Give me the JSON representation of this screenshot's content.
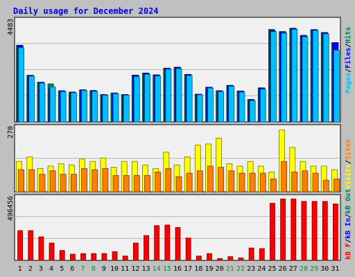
{
  "title": "Daily usage for December 2024",
  "colors": {
    "background": "#c0c0c0",
    "plot_background": "#f0f0f0",
    "border": "#000000",
    "title_text": "#0000ee",
    "weekday_text": "#000000",
    "weekend_text": "#148c3c",
    "hits": "#00805c",
    "files": "#0000ff",
    "pages": "#00c0ff",
    "visits": "#ffff00",
    "sites": "#ff8000",
    "kb_in": "#0000ff",
    "kb_out": "#00805c",
    "kb_f": "#ff0000"
  },
  "chart_data": [
    {
      "type": "bar",
      "name": "hits-files-pages",
      "ylabel_max": "4483",
      "ylim": [
        0,
        4483
      ],
      "grid": true,
      "legend": [
        {
          "label": "Pages",
          "color": "#00c0ff"
        },
        {
          "label": "Files",
          "color": "#0000ff"
        },
        {
          "label": "Hits",
          "color": "#00805c"
        }
      ],
      "categories": [
        "1",
        "2",
        "3",
        "4",
        "5",
        "6",
        "7",
        "8",
        "9",
        "10",
        "11",
        "12",
        "13",
        "14",
        "15",
        "16",
        "17",
        "18",
        "19",
        "20",
        "21",
        "22",
        "23",
        "24",
        "25",
        "26",
        "27",
        "28",
        "29",
        "30",
        "31"
      ],
      "weekend": [
        false,
        false,
        false,
        false,
        false,
        false,
        true,
        true,
        false,
        false,
        false,
        false,
        false,
        true,
        true,
        false,
        false,
        false,
        false,
        false,
        true,
        true,
        false,
        false,
        false,
        false,
        false,
        true,
        true,
        false,
        false
      ],
      "series": [
        {
          "name": "Hits",
          "values": [
            3420,
            2080,
            1770,
            1700,
            1390,
            1330,
            1430,
            1400,
            1220,
            1290,
            1220,
            2090,
            2180,
            2100,
            2400,
            2440,
            2120,
            1240,
            1550,
            1390,
            1630,
            1380,
            1000,
            1520,
            4130,
            4030,
            4180,
            3860,
            4120,
            3990,
            3540
          ]
        },
        {
          "name": "Files",
          "values": [
            3420,
            2080,
            1770,
            1510,
            1390,
            1330,
            1430,
            1400,
            1220,
            1290,
            1220,
            2090,
            2180,
            2100,
            2400,
            2440,
            2120,
            1240,
            1550,
            1390,
            1630,
            1380,
            1000,
            1520,
            4080,
            4030,
            4180,
            3860,
            4120,
            3990,
            3540
          ]
        },
        {
          "name": "Pages",
          "values": [
            3310,
            2040,
            1730,
            1560,
            1350,
            1300,
            1400,
            1360,
            1190,
            1260,
            1190,
            2020,
            2120,
            2050,
            2350,
            2380,
            2070,
            1210,
            1510,
            1350,
            1590,
            1330,
            950,
            1460,
            4030,
            3960,
            4130,
            3800,
            4080,
            3930,
            3200
          ]
        }
      ]
    },
    {
      "type": "bar",
      "name": "visits-sites",
      "ylabel_max": "270",
      "ylim": [
        0,
        270
      ],
      "grid": true,
      "legend": [
        {
          "label": "Visits",
          "color": "#ffff00"
        },
        {
          "label": "Sites",
          "color": "#ff8000"
        }
      ],
      "categories": [
        "1",
        "2",
        "3",
        "4",
        "5",
        "6",
        "7",
        "8",
        "9",
        "10",
        "11",
        "12",
        "13",
        "14",
        "15",
        "16",
        "17",
        "18",
        "19",
        "20",
        "21",
        "22",
        "23",
        "24",
        "25",
        "26",
        "27",
        "28",
        "29",
        "30",
        "31"
      ],
      "series": [
        {
          "name": "Visits",
          "values": [
            130,
            150,
            100,
            110,
            120,
            115,
            140,
            130,
            145,
            105,
            130,
            130,
            115,
            100,
            170,
            115,
            150,
            200,
            205,
            230,
            120,
            110,
            130,
            110,
            85,
            265,
            190,
            130,
            110,
            110,
            95
          ]
        },
        {
          "name": "Sites",
          "values": [
            95,
            95,
            75,
            90,
            75,
            75,
            100,
            95,
            100,
            70,
            70,
            70,
            70,
            85,
            100,
            65,
            80,
            90,
            110,
            105,
            90,
            80,
            80,
            80,
            55,
            130,
            85,
            90,
            80,
            50,
            55
          ]
        }
      ]
    },
    {
      "type": "bar",
      "name": "kbytes",
      "ylabel_max": "496456",
      "ylim": [
        0,
        496456
      ],
      "grid": true,
      "legend": [
        {
          "label": "kB F",
          "color": "#ff0000"
        },
        {
          "label": "kB In",
          "color": "#0000ff"
        },
        {
          "label": "kB Out",
          "color": "#00805c"
        }
      ],
      "categories": [
        "1",
        "2",
        "3",
        "4",
        "5",
        "6",
        "7",
        "8",
        "9",
        "10",
        "11",
        "12",
        "13",
        "14",
        "15",
        "16",
        "17",
        "18",
        "19",
        "20",
        "21",
        "22",
        "23",
        "24",
        "25",
        "26",
        "27",
        "28",
        "29",
        "30",
        "31"
      ],
      "series": [
        {
          "name": "kB F",
          "values": [
            240000,
            240000,
            190000,
            140000,
            80000,
            50000,
            55000,
            55000,
            55000,
            70000,
            35000,
            140000,
            200000,
            280000,
            285000,
            265000,
            180000,
            35000,
            55000,
            15000,
            30000,
            20000,
            100000,
            95000,
            460000,
            495000,
            495000,
            475000,
            475000,
            475000,
            455000
          ]
        }
      ]
    }
  ]
}
